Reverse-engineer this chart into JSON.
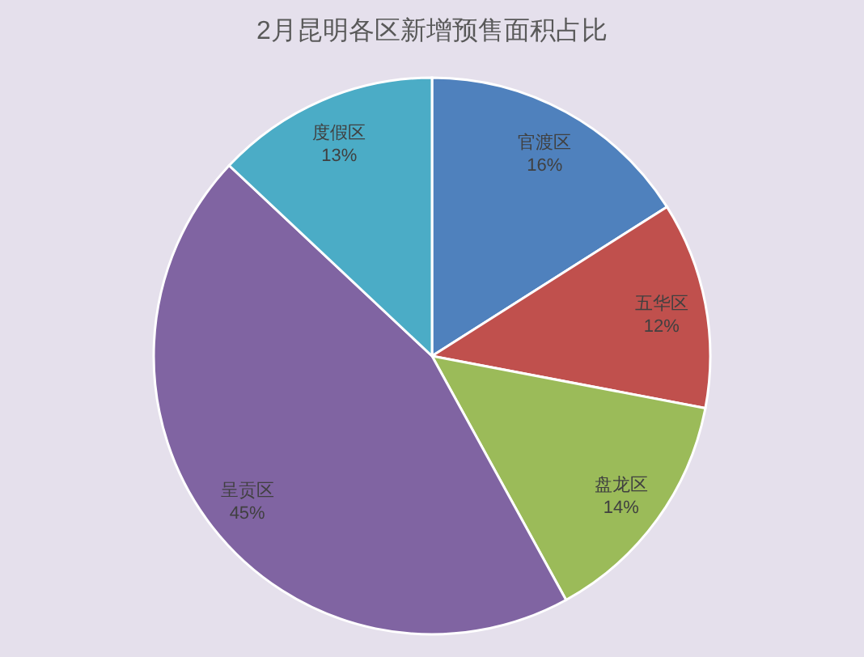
{
  "chart_data": {
    "type": "pie",
    "title": "2月昆明各区新增预售面积占比",
    "categories": [
      "官渡区",
      "五华区",
      "盘龙区",
      "呈贡区",
      "度假区"
    ],
    "values": [
      16,
      12,
      14,
      45,
      13
    ],
    "value_labels": [
      "16%",
      "12%",
      "14%",
      "45%",
      "13%"
    ],
    "colors": [
      "#4f81bd",
      "#c0504d",
      "#9bbb59",
      "#8064a2",
      "#4bacc6"
    ]
  }
}
